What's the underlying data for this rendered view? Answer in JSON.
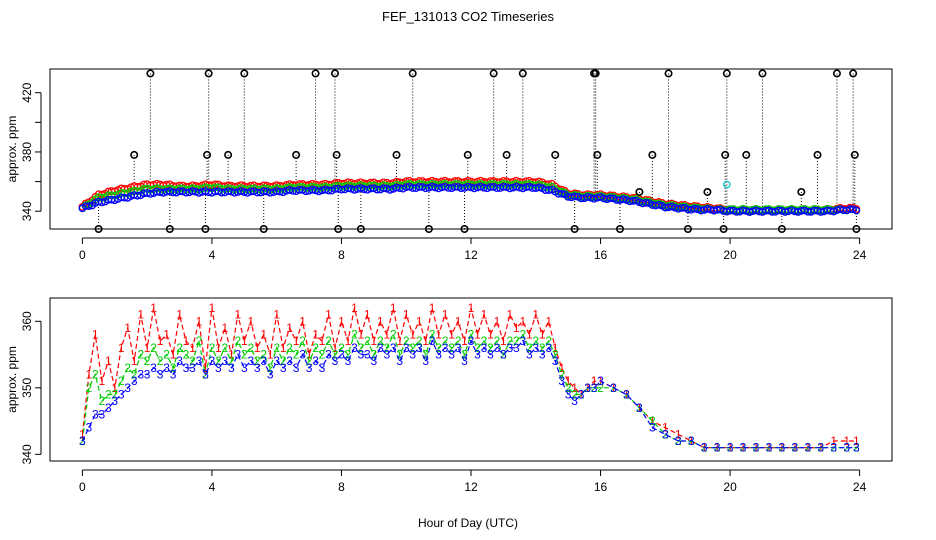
{
  "title": "FEF_131013  CO2 Timeseries",
  "xlabel": "Hour of Day (UTC)",
  "colors": {
    "series1": "#FF0000",
    "series2": "#00CC00",
    "series3": "#0000FF",
    "series4": "#00CCCC",
    "spike": "#000000"
  },
  "chart_data": [
    {
      "type": "scatter",
      "panel": "top",
      "ylabel": "approx. ppm",
      "xlim": [
        -1,
        25
      ],
      "ylim": [
        328,
        436
      ],
      "xticks": [
        0,
        4,
        8,
        12,
        16,
        20,
        24
      ],
      "yticks": [
        340,
        360,
        380,
        400,
        420
      ],
      "ytick_labels": [
        "340",
        "",
        "380",
        "",
        "420"
      ],
      "series": [
        {
          "name": "1",
          "color": "red",
          "x": [
            0,
            0.5,
            1,
            1.5,
            2,
            2.5,
            3,
            3.5,
            4,
            4.5,
            5,
            5.5,
            6,
            6.5,
            7,
            7.5,
            8,
            8.5,
            9,
            9.5,
            10,
            10.5,
            11,
            11.5,
            12,
            12.5,
            13,
            13.5,
            14,
            14.5,
            15,
            15.5,
            16,
            16.5,
            17,
            17.5,
            18,
            18.5,
            19,
            19.5,
            20,
            20.5,
            21,
            21.5,
            22,
            22.5,
            23,
            23.5,
            24
          ],
          "y": [
            343,
            351,
            354,
            356,
            358,
            358,
            357,
            357,
            358,
            357,
            357,
            357,
            357,
            358,
            358,
            358,
            359,
            359,
            359,
            359,
            360,
            360,
            360,
            360,
            360,
            360,
            360,
            360,
            360,
            358,
            352,
            351,
            351,
            350,
            349,
            347,
            345,
            344,
            343,
            342,
            341,
            341,
            341,
            341,
            341,
            341,
            341,
            342,
            342
          ]
        },
        {
          "name": "2",
          "color": "green",
          "x": [
            0,
            0.5,
            1,
            1.5,
            2,
            2.5,
            3,
            3.5,
            4,
            4.5,
            5,
            5.5,
            6,
            6.5,
            7,
            7.5,
            8,
            8.5,
            9,
            9.5,
            10,
            10.5,
            11,
            11.5,
            12,
            12.5,
            13,
            13.5,
            14,
            14.5,
            15,
            15.5,
            16,
            16.5,
            17,
            17.5,
            18,
            18.5,
            19,
            19.5,
            20,
            20.5,
            21,
            21.5,
            22,
            22.5,
            23,
            23.5,
            24
          ],
          "y": [
            342,
            349,
            351,
            353,
            355,
            355,
            355,
            355,
            356,
            355,
            355,
            355,
            355,
            356,
            356,
            356,
            357,
            357,
            357,
            357,
            358,
            358,
            358,
            358,
            358,
            358,
            358,
            358,
            358,
            356,
            351,
            350,
            350,
            349,
            348,
            346,
            344,
            343,
            342,
            341,
            341,
            341,
            341,
            341,
            341,
            341,
            341,
            341,
            341
          ]
        },
        {
          "name": "3",
          "color": "blue",
          "x": [
            0,
            0.5,
            1,
            1.5,
            2,
            2.5,
            3,
            3.5,
            4,
            4.5,
            5,
            5.5,
            6,
            6.5,
            7,
            7.5,
            8,
            8.5,
            9,
            9.5,
            10,
            10.5,
            11,
            11.5,
            12,
            12.5,
            13,
            13.5,
            14,
            14.5,
            15,
            15.5,
            16,
            16.5,
            17,
            17.5,
            18,
            18.5,
            19,
            19.5,
            20,
            20.5,
            21,
            21.5,
            22,
            22.5,
            23,
            23.5,
            24
          ],
          "y": [
            342,
            346,
            348,
            350,
            352,
            353,
            353,
            353,
            353,
            353,
            353,
            353,
            353,
            354,
            354,
            354,
            355,
            355,
            355,
            355,
            356,
            356,
            356,
            356,
            356,
            356,
            356,
            356,
            356,
            354,
            350,
            349,
            349,
            348,
            347,
            345,
            343,
            342,
            341,
            341,
            340,
            340,
            340,
            340,
            340,
            340,
            340,
            341,
            341
          ]
        },
        {
          "name": "4",
          "color": "cyan",
          "x": [
            19.9
          ],
          "y": [
            358
          ]
        }
      ],
      "spikes": {
        "color": "black",
        "x": [
          0.5,
          1.6,
          2.1,
          2.7,
          3.8,
          3.85,
          3.9,
          4.5,
          5.0,
          5.6,
          6.6,
          7.2,
          7.8,
          7.85,
          7.9,
          8.6,
          9.7,
          10.2,
          10.7,
          11.8,
          11.9,
          12.7,
          13.1,
          13.6,
          14.6,
          15.2,
          15.8,
          15.85,
          15.9,
          16.6,
          17.2,
          17.6,
          18.1,
          18.7,
          19.3,
          19.8,
          19.85,
          19.9,
          20.5,
          21.0,
          21.6,
          22.2,
          22.7,
          23.3,
          23.8,
          23.85,
          23.9
        ],
        "y": [
          328,
          378,
          434,
          328,
          328,
          378,
          434,
          378,
          434,
          328,
          378,
          434,
          434,
          378,
          328,
          328,
          378,
          434,
          328,
          328,
          378,
          434,
          378,
          434,
          378,
          328,
          434,
          434,
          378,
          328,
          353,
          378,
          434,
          328,
          353,
          328,
          378,
          434,
          378,
          434,
          328,
          353,
          378,
          434,
          434,
          378,
          328
        ]
      }
    },
    {
      "type": "line",
      "panel": "bottom",
      "ylabel": "approx. ppm",
      "xlim": [
        -1,
        25
      ],
      "ylim": [
        339,
        363.5
      ],
      "xticks": [
        0,
        4,
        8,
        12,
        16,
        20,
        24
      ],
      "yticks": [
        340,
        350,
        360
      ],
      "series": [
        {
          "name": "1",
          "color": "red",
          "marker": "1",
          "x": [
            0,
            0.2,
            0.4,
            0.6,
            0.8,
            1.0,
            1.2,
            1.4,
            1.6,
            1.8,
            2.0,
            2.2,
            2.4,
            2.6,
            2.8,
            3.0,
            3.2,
            3.4,
            3.6,
            3.8,
            4.0,
            4.2,
            4.4,
            4.6,
            4.8,
            5.0,
            5.2,
            5.4,
            5.6,
            5.8,
            6.0,
            6.2,
            6.4,
            6.6,
            6.8,
            7.0,
            7.2,
            7.4,
            7.6,
            7.8,
            8.0,
            8.2,
            8.4,
            8.6,
            8.8,
            9.0,
            9.2,
            9.4,
            9.6,
            9.8,
            10.0,
            10.2,
            10.4,
            10.6,
            10.8,
            11.0,
            11.2,
            11.4,
            11.6,
            11.8,
            12.0,
            12.2,
            12.4,
            12.6,
            12.8,
            13.0,
            13.2,
            13.4,
            13.6,
            13.8,
            14.0,
            14.2,
            14.4,
            14.6,
            14.8,
            15.0,
            15.2,
            15.4,
            15.6,
            15.8,
            16.0,
            16.4,
            16.8,
            17.2,
            17.6,
            18.0,
            18.4,
            18.8,
            19.2,
            19.6,
            20.0,
            20.4,
            20.8,
            21.2,
            21.6,
            22.0,
            22.4,
            22.8,
            23.2,
            23.6,
            23.9
          ],
          "y": [
            343,
            352,
            358,
            351,
            354,
            350,
            356,
            359,
            354,
            361,
            356,
            362,
            357,
            358,
            355,
            361,
            357,
            356,
            360,
            353,
            362,
            356,
            359,
            355,
            361,
            357,
            360,
            356,
            358,
            355,
            361,
            356,
            359,
            357,
            360,
            355,
            358,
            357,
            361,
            356,
            360,
            357,
            362,
            358,
            361,
            357,
            360,
            358,
            362,
            357,
            361,
            358,
            360,
            357,
            362,
            358,
            361,
            358,
            360,
            357,
            362,
            358,
            361,
            358,
            360,
            357,
            361,
            359,
            360,
            358,
            361,
            358,
            360,
            356,
            353,
            351,
            350,
            349,
            350,
            351,
            351,
            350,
            349,
            347,
            345,
            344,
            343,
            342,
            341,
            341,
            341,
            341,
            341,
            341,
            341,
            341,
            341,
            341,
            342,
            342,
            342
          ]
        },
        {
          "name": "2",
          "color": "green",
          "marker": "2",
          "x": [
            0,
            0.2,
            0.4,
            0.6,
            0.8,
            1.0,
            1.2,
            1.4,
            1.6,
            1.8,
            2.0,
            2.2,
            2.4,
            2.6,
            2.8,
            3.0,
            3.2,
            3.4,
            3.6,
            3.8,
            4.0,
            4.2,
            4.4,
            4.6,
            4.8,
            5.0,
            5.2,
            5.4,
            5.6,
            5.8,
            6.0,
            6.2,
            6.4,
            6.6,
            6.8,
            7.0,
            7.2,
            7.4,
            7.6,
            7.8,
            8.0,
            8.2,
            8.4,
            8.6,
            8.8,
            9.0,
            9.2,
            9.4,
            9.6,
            9.8,
            10.0,
            10.2,
            10.4,
            10.6,
            10.8,
            11.0,
            11.2,
            11.4,
            11.6,
            11.8,
            12.0,
            12.2,
            12.4,
            12.6,
            12.8,
            13.0,
            13.2,
            13.4,
            13.6,
            13.8,
            14.0,
            14.2,
            14.4,
            14.6,
            14.8,
            15.0,
            15.2,
            15.4,
            15.6,
            15.8,
            16.0,
            16.4,
            16.8,
            17.2,
            17.6,
            18.0,
            18.4,
            18.8,
            19.2,
            19.6,
            20.0,
            20.4,
            20.8,
            21.2,
            21.6,
            22.0,
            22.4,
            22.8,
            23.2,
            23.6,
            23.9
          ],
          "y": [
            342,
            350,
            352,
            348,
            349,
            349,
            351,
            353,
            352,
            355,
            354,
            356,
            354,
            355,
            353,
            356,
            355,
            354,
            357,
            352,
            356,
            354,
            356,
            354,
            357,
            355,
            356,
            354,
            355,
            353,
            356,
            354,
            356,
            355,
            357,
            354,
            356,
            355,
            357,
            355,
            356,
            355,
            358,
            356,
            357,
            355,
            357,
            356,
            358,
            355,
            357,
            356,
            357,
            355,
            358,
            356,
            357,
            356,
            357,
            355,
            358,
            356,
            357,
            356,
            357,
            355,
            357,
            357,
            358,
            356,
            357,
            356,
            357,
            355,
            352,
            350,
            349,
            349,
            350,
            350,
            350,
            350,
            349,
            347,
            345,
            343,
            342,
            342,
            341,
            341,
            341,
            341,
            341,
            341,
            341,
            341,
            341,
            341,
            341,
            341,
            341
          ]
        },
        {
          "name": "3",
          "color": "blue",
          "marker": "3",
          "x": [
            0,
            0.2,
            0.4,
            0.6,
            0.8,
            1.0,
            1.2,
            1.4,
            1.6,
            1.8,
            2.0,
            2.2,
            2.4,
            2.6,
            2.8,
            3.0,
            3.2,
            3.4,
            3.6,
            3.8,
            4.0,
            4.2,
            4.4,
            4.6,
            4.8,
            5.0,
            5.2,
            5.4,
            5.6,
            5.8,
            6.0,
            6.2,
            6.4,
            6.6,
            6.8,
            7.0,
            7.2,
            7.4,
            7.6,
            7.8,
            8.0,
            8.2,
            8.4,
            8.6,
            8.8,
            9.0,
            9.2,
            9.4,
            9.6,
            9.8,
            10.0,
            10.2,
            10.4,
            10.6,
            10.8,
            11.0,
            11.2,
            11.4,
            11.6,
            11.8,
            12.0,
            12.2,
            12.4,
            12.6,
            12.8,
            13.0,
            13.2,
            13.4,
            13.6,
            13.8,
            14.0,
            14.2,
            14.4,
            14.6,
            14.8,
            15.0,
            15.2,
            15.4,
            15.6,
            15.8,
            16.0,
            16.4,
            16.8,
            17.2,
            17.6,
            18.0,
            18.4,
            18.8,
            19.2,
            19.6,
            20.0,
            20.4,
            20.8,
            21.2,
            21.6,
            22.0,
            22.4,
            22.8,
            23.2,
            23.6,
            23.9
          ],
          "y": [
            342,
            344,
            346,
            346,
            347,
            348,
            349,
            350,
            351,
            352,
            352,
            353,
            352,
            353,
            352,
            354,
            353,
            353,
            354,
            352,
            354,
            353,
            354,
            353,
            355,
            353,
            354,
            353,
            354,
            352,
            354,
            353,
            354,
            353,
            355,
            353,
            354,
            353,
            355,
            354,
            355,
            354,
            356,
            355,
            355,
            354,
            356,
            355,
            356,
            354,
            356,
            355,
            356,
            354,
            357,
            355,
            356,
            355,
            356,
            354,
            357,
            355,
            356,
            355,
            356,
            355,
            356,
            356,
            357,
            355,
            356,
            355,
            356,
            354,
            351,
            349,
            348,
            349,
            350,
            350,
            351,
            350,
            349,
            347,
            344,
            343,
            342,
            342,
            341,
            341,
            341,
            341,
            341,
            341,
            341,
            341,
            341,
            341,
            341,
            341,
            341
          ]
        }
      ]
    }
  ]
}
